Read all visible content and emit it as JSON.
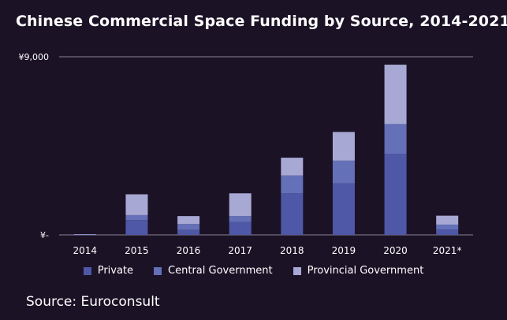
{
  "chart_data": {
    "type": "bar",
    "stacked": true,
    "title": "Chinese Commercial Space Funding by Source, 2014-2021",
    "categories": [
      "2014",
      "2015",
      "2016",
      "2017",
      "2018",
      "2019",
      "2020",
      "2021*"
    ],
    "series": [
      {
        "name": "Private",
        "color": "#4f58a6",
        "values": [
          20,
          750,
          250,
          650,
          2100,
          2600,
          4100,
          280
        ]
      },
      {
        "name": "Central Government",
        "color": "#6470b8",
        "values": [
          10,
          250,
          300,
          300,
          900,
          1150,
          1500,
          240
        ]
      },
      {
        "name": "Provincial Government",
        "color": "#a8a8d4",
        "values": [
          10,
          1050,
          400,
          1150,
          900,
          1450,
          3000,
          450
        ]
      }
    ],
    "ytick_labels": [
      "¥-",
      "¥9,000"
    ],
    "ylim": [
      0,
      9000
    ],
    "grid": "y-max-only",
    "legend_position": "bottom-center",
    "xlabel": "",
    "ylabel": "",
    "axis_color": "#8a8494"
  },
  "source_text": "Source: Euroconsult"
}
